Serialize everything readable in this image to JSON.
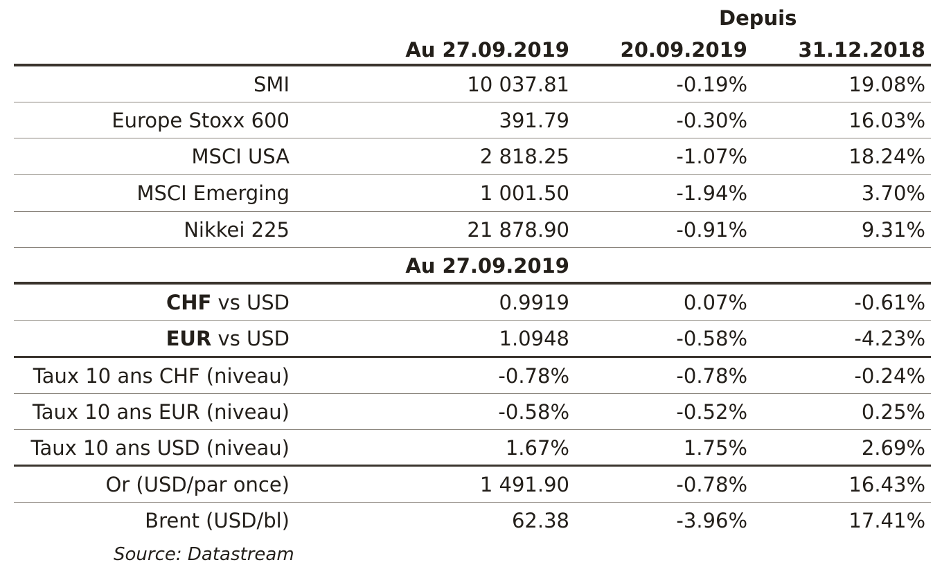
{
  "header": {
    "group_label": "Depuis",
    "col1": "Au 27.09.2019",
    "col2": "20.09.2019",
    "col3": "31.12.2018"
  },
  "indices": [
    {
      "label": "SMI",
      "value": "10 037.81",
      "week": "-0.19%",
      "ytd": "19.08%"
    },
    {
      "label": "Europe Stoxx 600",
      "value": "391.79",
      "week": "-0.30%",
      "ytd": "16.03%"
    },
    {
      "label": "MSCI USA",
      "value": "2 818.25",
      "week": "-1.07%",
      "ytd": "18.24%"
    },
    {
      "label": "MSCI Emerging",
      "value": "1 001.50",
      "week": "-1.94%",
      "ytd": "3.70%"
    },
    {
      "label": "Nikkei 225",
      "value": "21 878.90",
      "week": "-0.91%",
      "ytd": "9.31%"
    }
  ],
  "subheader": "Au 27.09.2019",
  "fx": [
    {
      "label_bold": "CHF",
      "label_rest": " vs USD",
      "value": "0.9919",
      "week": "0.07%",
      "ytd": "-0.61%"
    },
    {
      "label_bold": "EUR",
      "label_rest": " vs USD",
      "value": "1.0948",
      "week": "-0.58%",
      "ytd": "-4.23%"
    }
  ],
  "rates": [
    {
      "label": "Taux 10 ans CHF (niveau)",
      "value": "-0.78%",
      "week": "-0.78%",
      "ytd": "-0.24%"
    },
    {
      "label": "Taux 10 ans EUR (niveau)",
      "value": "-0.58%",
      "week": "-0.52%",
      "ytd": "0.25%"
    },
    {
      "label": "Taux 10 ans USD (niveau)",
      "value": "1.67%",
      "week": "1.75%",
      "ytd": "2.69%"
    }
  ],
  "commodities": [
    {
      "label": "Or (USD/par once)",
      "value": "1 491.90",
      "week": "-0.78%",
      "ytd": "16.43%"
    },
    {
      "label": "Brent (USD/bl)",
      "value": "62.38",
      "week": "-3.96%",
      "ytd": "17.41%"
    }
  ],
  "source": "Source: Datastream"
}
